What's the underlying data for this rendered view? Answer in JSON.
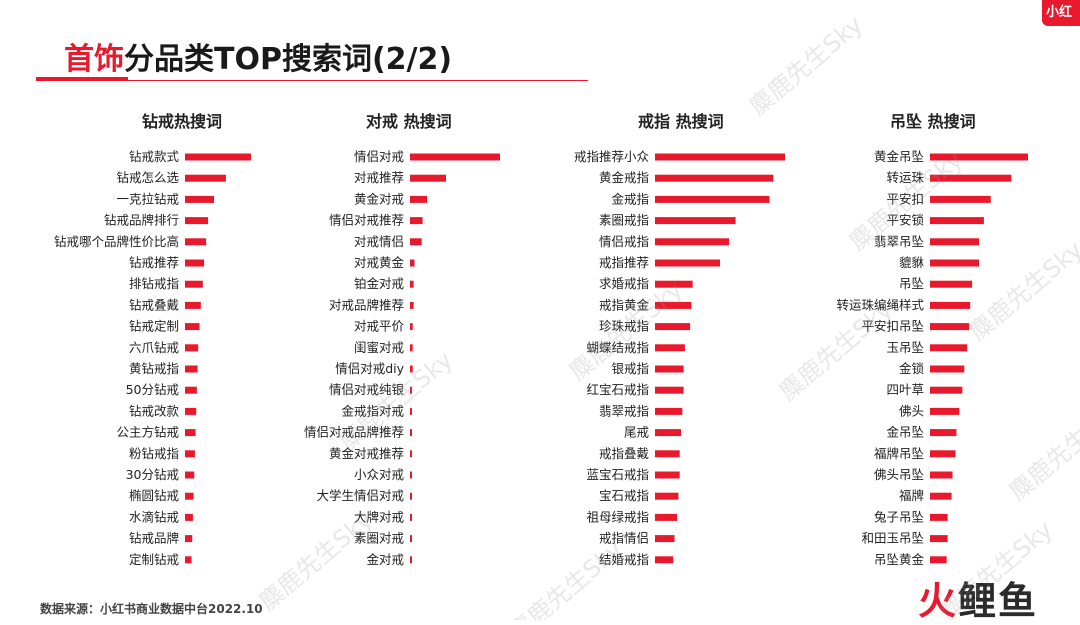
{
  "header": {
    "title_accent": "首饰",
    "title_rest": "分品类TOP搜索词(2/2)",
    "corner_logo": "小红"
  },
  "footer": {
    "source": "数据来源：小红书商业数据中台2022.10"
  },
  "brand": {
    "part1": "火",
    "part2": "鲤鱼"
  },
  "watermark_text": "麋鹿先生Sky",
  "colors": {
    "accent": "#e8192c",
    "bar": "#e8192c"
  },
  "chart_data": [
    {
      "type": "bar",
      "orientation": "horizontal",
      "title": "钻戒热搜词",
      "categories": [
        "钻戒款式",
        "钻戒怎么选",
        "一克拉钻戒",
        "钻戒品牌排行",
        "钻戒哪个品牌性价比高",
        "钻戒推荐",
        "排钻戒指",
        "钻戒叠戴",
        "钻戒定制",
        "六爪钻戒",
        "黄钻戒指",
        "50分钻戒",
        "钻戒改款",
        "公主方钻戒",
        "粉钻戒指",
        "30分钻戒",
        "椭圆钻戒",
        "水滴钻戒",
        "钻戒品牌",
        "定制钻戒"
      ],
      "values": [
        100,
        62,
        44,
        35,
        32,
        29,
        27,
        24,
        22,
        20,
        19,
        18,
        17,
        16,
        15,
        14,
        13,
        12,
        11,
        10
      ],
      "xlim": [
        0,
        100
      ]
    },
    {
      "type": "bar",
      "orientation": "horizontal",
      "title": "对戒 热搜词",
      "categories": [
        "情侣对戒",
        "对戒推荐",
        "黄金对戒",
        "情侣对戒推荐",
        "对戒情侣",
        "对戒黄金",
        "铂金对戒",
        "对戒品牌推荐",
        "对戒平价",
        "闺蜜对戒",
        "情侣对戒diy",
        "情侣对戒纯银",
        "金戒指对戒",
        "情侣对戒品牌推荐",
        "黄金对戒推荐",
        "小众对戒",
        "大学生情侣对戒",
        "大牌对戒",
        "素圈对戒",
        "金对戒"
      ],
      "values": [
        100,
        40,
        19,
        14,
        13,
        5,
        4,
        4,
        3,
        3,
        3,
        2,
        2,
        2,
        2,
        1,
        1,
        1,
        1,
        1
      ],
      "xlim": [
        0,
        100
      ]
    },
    {
      "type": "bar",
      "orientation": "horizontal",
      "title": "戒指 热搜词",
      "categories": [
        "戒指推荐小众",
        "黄金戒指",
        "金戒指",
        "素圈戒指",
        "情侣戒指",
        "戒指推荐",
        "求婚戒指",
        "戒指黄金",
        "珍珠戒指",
        "蝴蝶结戒指",
        "银戒指",
        "红宝石戒指",
        "翡翠戒指",
        "尾戒",
        "戒指叠戴",
        "蓝宝石戒指",
        "宝石戒指",
        "祖母绿戒指",
        "戒指情侣",
        "结婚戒指"
      ],
      "values": [
        100,
        91,
        88,
        62,
        57,
        50,
        29,
        28,
        27,
        23,
        22,
        22,
        21,
        20,
        19,
        19,
        18,
        17,
        15,
        14
      ],
      "xlim": [
        0,
        100
      ]
    },
    {
      "type": "bar",
      "orientation": "horizontal",
      "title": "吊坠 热搜词",
      "categories": [
        "黄金吊坠",
        "转运珠",
        "平安扣",
        "平安锁",
        "翡翠吊坠",
        "貔貅",
        "吊坠",
        "转运珠编绳样式",
        "平安扣吊坠",
        "玉吊坠",
        "金锁",
        "四叶草",
        "佛头",
        "金吊坠",
        "福牌吊坠",
        "佛头吊坠",
        "福牌",
        "兔子吊坠",
        "和田玉吊坠",
        "吊坠黄金"
      ],
      "values": [
        100,
        83,
        62,
        55,
        50,
        50,
        43,
        41,
        40,
        38,
        35,
        33,
        30,
        27,
        26,
        23,
        22,
        18,
        18,
        17
      ],
      "xlim": [
        0,
        100
      ]
    }
  ]
}
